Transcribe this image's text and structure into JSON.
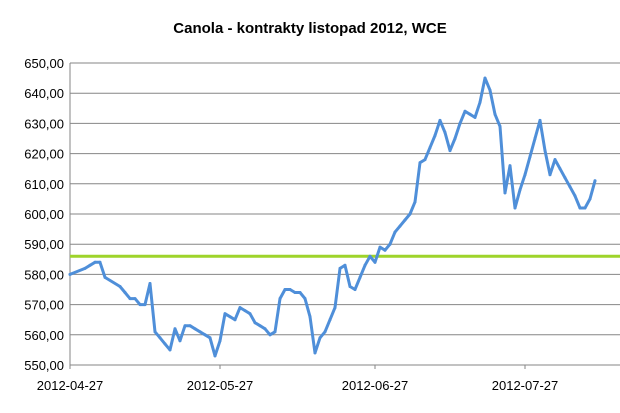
{
  "chart_data": {
    "type": "line",
    "title": "Canola - kontrakty listopad 2012, WCE",
    "xlabel": "",
    "ylabel": "",
    "ylim": [
      550,
      650
    ],
    "yticks": [
      "550,00",
      "560,00",
      "570,00",
      "580,00",
      "590,00",
      "600,00",
      "610,00",
      "620,00",
      "630,00",
      "640,00",
      "650,00"
    ],
    "xlim": [
      "2012-04-27",
      "2012-08-15"
    ],
    "xticks": [
      "2012-04-27",
      "2012-05-27",
      "2012-06-27",
      "2012-07-27"
    ],
    "grid": "horizontal",
    "legend": "none",
    "colors": {
      "price_line": "#4f8fd9",
      "reference_line": "#9ed42a",
      "grid": "#868686"
    },
    "reference_line": {
      "y": 586
    },
    "series": [
      {
        "values": [
          {
            "x": "2012-04-27",
            "y": 580
          },
          {
            "x": "2012-04-30",
            "y": 582
          },
          {
            "x": "2012-05-01",
            "y": 583
          },
          {
            "x": "2012-05-02",
            "y": 584
          },
          {
            "x": "2012-05-03",
            "y": 584
          },
          {
            "x": "2012-05-04",
            "y": 579
          },
          {
            "x": "2012-05-07",
            "y": 576
          },
          {
            "x": "2012-05-08",
            "y": 574
          },
          {
            "x": "2012-05-09",
            "y": 572
          },
          {
            "x": "2012-05-10",
            "y": 572
          },
          {
            "x": "2012-05-11",
            "y": 570
          },
          {
            "x": "2012-05-12",
            "y": 570
          },
          {
            "x": "2012-05-13",
            "y": 577
          },
          {
            "x": "2012-05-14",
            "y": 561
          },
          {
            "x": "2012-05-15",
            "y": 559
          },
          {
            "x": "2012-05-16",
            "y": 557
          },
          {
            "x": "2012-05-17",
            "y": 555
          },
          {
            "x": "2012-05-18",
            "y": 562
          },
          {
            "x": "2012-05-19",
            "y": 558
          },
          {
            "x": "2012-05-20",
            "y": 563
          },
          {
            "x": "2012-05-21",
            "y": 563
          },
          {
            "x": "2012-05-22",
            "y": 562
          },
          {
            "x": "2012-05-23",
            "y": 561
          },
          {
            "x": "2012-05-24",
            "y": 560
          },
          {
            "x": "2012-05-25",
            "y": 559
          },
          {
            "x": "2012-05-26",
            "y": 553
          },
          {
            "x": "2012-05-27",
            "y": 558
          },
          {
            "x": "2012-05-28",
            "y": 567
          },
          {
            "x": "2012-05-29",
            "y": 566
          },
          {
            "x": "2012-05-30",
            "y": 565
          },
          {
            "x": "2012-05-31",
            "y": 569
          },
          {
            "x": "2012-06-01",
            "y": 568
          },
          {
            "x": "2012-06-02",
            "y": 567
          },
          {
            "x": "2012-06-03",
            "y": 564
          },
          {
            "x": "2012-06-04",
            "y": 563
          },
          {
            "x": "2012-06-05",
            "y": 562
          },
          {
            "x": "2012-06-06",
            "y": 560
          },
          {
            "x": "2012-06-07",
            "y": 561
          },
          {
            "x": "2012-06-08",
            "y": 572
          },
          {
            "x": "2012-06-09",
            "y": 575
          },
          {
            "x": "2012-06-10",
            "y": 575
          },
          {
            "x": "2012-06-11",
            "y": 574
          },
          {
            "x": "2012-06-12",
            "y": 574
          },
          {
            "x": "2012-06-13",
            "y": 572
          },
          {
            "x": "2012-06-14",
            "y": 566
          },
          {
            "x": "2012-06-15",
            "y": 554
          },
          {
            "x": "2012-06-16",
            "y": 559
          },
          {
            "x": "2012-06-17",
            "y": 561
          },
          {
            "x": "2012-06-18",
            "y": 565
          },
          {
            "x": "2012-06-19",
            "y": 569
          },
          {
            "x": "2012-06-20",
            "y": 582
          },
          {
            "x": "2012-06-21",
            "y": 583
          },
          {
            "x": "2012-06-22",
            "y": 576
          },
          {
            "x": "2012-06-23",
            "y": 575
          },
          {
            "x": "2012-06-24",
            "y": 579
          },
          {
            "x": "2012-06-25",
            "y": 583
          },
          {
            "x": "2012-06-26",
            "y": 586
          },
          {
            "x": "2012-06-27",
            "y": 584
          },
          {
            "x": "2012-06-28",
            "y": 589
          },
          {
            "x": "2012-06-29",
            "y": 588
          },
          {
            "x": "2012-06-30",
            "y": 590
          },
          {
            "x": "2012-07-01",
            "y": 594
          },
          {
            "x": "2012-07-02",
            "y": 596
          },
          {
            "x": "2012-07-03",
            "y": 598
          },
          {
            "x": "2012-07-04",
            "y": 600
          },
          {
            "x": "2012-07-05",
            "y": 604
          },
          {
            "x": "2012-07-06",
            "y": 617
          },
          {
            "x": "2012-07-07",
            "y": 618
          },
          {
            "x": "2012-07-08",
            "y": 622
          },
          {
            "x": "2012-07-09",
            "y": 626
          },
          {
            "x": "2012-07-10",
            "y": 631
          },
          {
            "x": "2012-07-11",
            "y": 627
          },
          {
            "x": "2012-07-12",
            "y": 621
          },
          {
            "x": "2012-07-13",
            "y": 625
          },
          {
            "x": "2012-07-14",
            "y": 630
          },
          {
            "x": "2012-07-15",
            "y": 634
          },
          {
            "x": "2012-07-16",
            "y": 633
          },
          {
            "x": "2012-07-17",
            "y": 632
          },
          {
            "x": "2012-07-18",
            "y": 637
          },
          {
            "x": "2012-07-19",
            "y": 645
          },
          {
            "x": "2012-07-20",
            "y": 641
          },
          {
            "x": "2012-07-21",
            "y": 633
          },
          {
            "x": "2012-07-22",
            "y": 629
          },
          {
            "x": "2012-07-23",
            "y": 607
          },
          {
            "x": "2012-07-24",
            "y": 616
          },
          {
            "x": "2012-07-25",
            "y": 602
          },
          {
            "x": "2012-07-26",
            "y": 608
          },
          {
            "x": "2012-07-27",
            "y": 613
          },
          {
            "x": "2012-07-28",
            "y": 619
          },
          {
            "x": "2012-07-29",
            "y": 625
          },
          {
            "x": "2012-07-30",
            "y": 631
          },
          {
            "x": "2012-07-31",
            "y": 621
          },
          {
            "x": "2012-08-01",
            "y": 613
          },
          {
            "x": "2012-08-02",
            "y": 618
          },
          {
            "x": "2012-08-03",
            "y": 615
          },
          {
            "x": "2012-08-04",
            "y": 612
          },
          {
            "x": "2012-08-05",
            "y": 609
          },
          {
            "x": "2012-08-06",
            "y": 606
          },
          {
            "x": "2012-08-07",
            "y": 602
          },
          {
            "x": "2012-08-08",
            "y": 602
          },
          {
            "x": "2012-08-09",
            "y": 605
          },
          {
            "x": "2012-08-10",
            "y": 611
          }
        ]
      }
    ]
  }
}
